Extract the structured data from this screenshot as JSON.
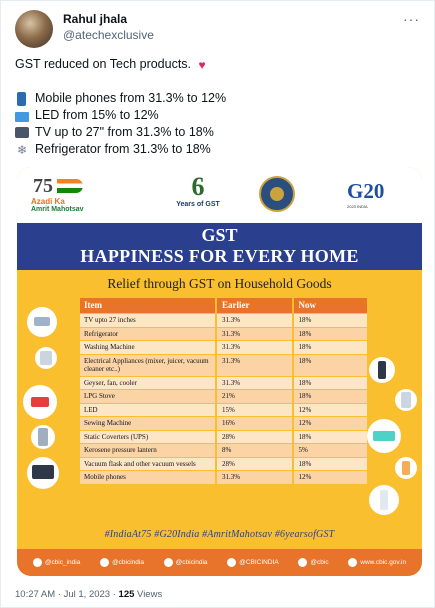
{
  "author": {
    "name": "Rahul jhala",
    "handle": "@atechexclusive"
  },
  "tweet": {
    "headline": "GST reduced on Tech products.",
    "bullets": [
      {
        "icon": "mobile-phone-icon",
        "text": "Mobile phones from 31.3% to 12%"
      },
      {
        "icon": "desktop-monitor-icon",
        "text": "LED from 15% to 12%"
      },
      {
        "icon": "television-icon",
        "text": "TV up to 27\" from 31.3% to 18%"
      },
      {
        "icon": "snowflake-icon",
        "text": "Refrigerator from 31.3% to 18%"
      }
    ]
  },
  "poster": {
    "logos": {
      "azadi_big": "75",
      "azadi_line1": "Azadi Ka",
      "azadi_line2": "Amrit Mahotsav",
      "gst_six": "6",
      "gst_years": "Years of GST",
      "g20_text": "G20",
      "g20_sub": "2023 INDIA"
    },
    "banner_line1": "GST",
    "banner_line2": "HAPPINESS FOR EVERY HOME",
    "subtitle": "Relief through GST on Household Goods",
    "table": {
      "headers": [
        "Item",
        "Earlier",
        "Now"
      ],
      "rows": [
        [
          "TV upto 27 inches",
          "31.3%",
          "18%"
        ],
        [
          "Refrigerator",
          "31.3%",
          "18%"
        ],
        [
          "Washing Machine",
          "31.3%",
          "18%"
        ],
        [
          "Electrical Appliances (mixer, juicer, vacuum cleaner etc..)",
          "31.3%",
          "18%"
        ],
        [
          "Geyser, fan, cooler",
          "31.3%",
          "18%"
        ],
        [
          "LPG Stove",
          "21%",
          "18%"
        ],
        [
          "LED",
          "15%",
          "12%"
        ],
        [
          "Sewing Machine",
          "16%",
          "12%"
        ],
        [
          "Static Coverters (UPS)",
          "28%",
          "18%"
        ],
        [
          "Kerosene pressure lantern",
          "8%",
          "5%"
        ],
        [
          "Vacuum flask and other vacuum vessels",
          "28%",
          "18%"
        ],
        [
          "Mobile phones",
          "31.3%",
          "12%"
        ]
      ]
    },
    "hashtags": "#IndiaAt75  #G20India  #AmritMahotsav  #6yearsofGST",
    "footer_handles": [
      "@cbic_india",
      "@cbicindia",
      "@cbicindia",
      "@CBICINDIA",
      "@cbic",
      "www.cbic.gov.in"
    ]
  },
  "meta": {
    "time": "10:27 AM",
    "date": "Jul 1, 2023",
    "views_count": "125",
    "views_label": "Views"
  },
  "colors": {
    "poster_bg": "#f9bf2f",
    "banner": "#2b3f8f",
    "table_header": "#e8732a"
  }
}
